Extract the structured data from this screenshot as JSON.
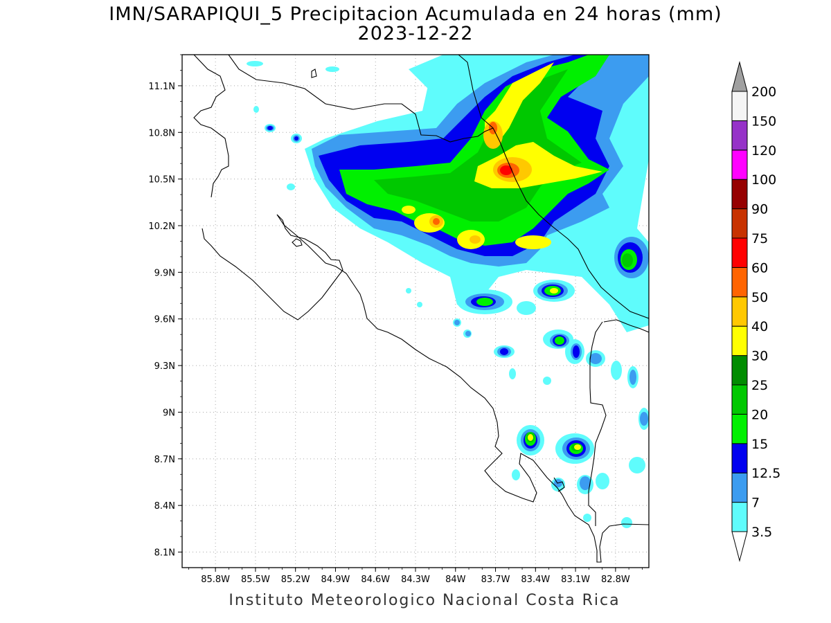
{
  "title_line1": "IMN/SARAPIQUI_5 Precipitacion Acumulada en 24 horas (mm)",
  "title_line2": "2023-12-22",
  "footer": "Instituto Meteorologico Nacional Costa Rica",
  "map": {
    "lon_range": [
      -86.05,
      -82.55
    ],
    "lat_range": [
      8.0,
      11.3
    ],
    "lon_ticks": [
      "85.8W",
      "85.5W",
      "85.2W",
      "84.9W",
      "84.6W",
      "84.3W",
      "84W",
      "83.7W",
      "83.4W",
      "83.1W",
      "82.8W"
    ],
    "lat_ticks": [
      "8.1N",
      "8.4N",
      "8.7N",
      "9N",
      "9.3N",
      "9.6N",
      "9.9N",
      "10.2N",
      "10.5N",
      "10.8N",
      "11.1N"
    ],
    "grid": true
  },
  "colorbar": {
    "labels": [
      "3.5",
      "7",
      "12.5",
      "15",
      "20",
      "25",
      "30",
      "40",
      "50",
      "60",
      "75",
      "90",
      "100",
      "120",
      "150",
      "200"
    ],
    "colors": [
      "#ffffff",
      "#5ffcfc",
      "#3c9cf0",
      "#0000f0",
      "#00f000",
      "#00c800",
      "#008c00",
      "#ffff00",
      "#ffc800",
      "#ff6400",
      "#ff0000",
      "#c83200",
      "#960000",
      "#ff00ff",
      "#9632c8",
      "#f5f5f5",
      "#a0a0a0"
    ]
  }
}
